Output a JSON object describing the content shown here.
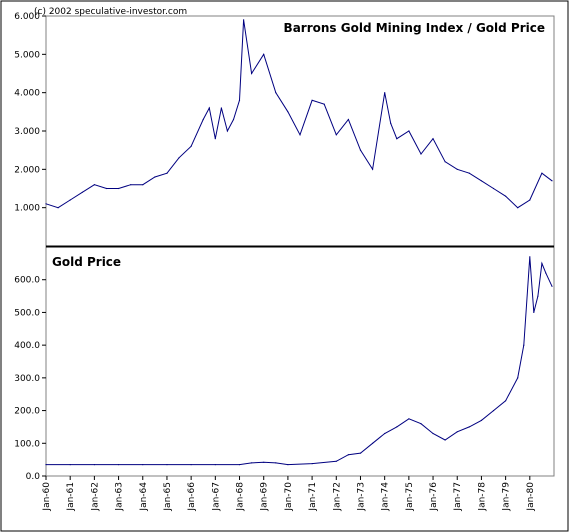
{
  "chart_data": [
    {
      "type": "line",
      "title": "Barrons Gold Mining Index / Gold Price",
      "subtitle": "(c) 2002 speculative-investor.com",
      "x_tick_labels": [
        "Jan-60",
        "Jan-61",
        "Jan-62",
        "Jan-63",
        "Jan-64",
        "Jan-65",
        "Jan-66",
        "Jan-67",
        "Jan-68",
        "Jan-69",
        "Jan-70",
        "Jan-71",
        "Jan-72",
        "Jan-73",
        "Jan-74",
        "Jan-75",
        "Jan-76",
        "Jan-77",
        "Jan-78",
        "Jan-79",
        "Jan-80"
      ],
      "y_tick_labels": [
        "1.000",
        "2.000",
        "3.000",
        "4.000",
        "5.000",
        "6.000"
      ],
      "ylim": [
        0,
        6
      ],
      "xlim": [
        "Jan-60",
        "Dec-80"
      ],
      "grid": false,
      "series": [
        {
          "color": "#000080",
          "x": [
            "Jan-60",
            "Jul-60",
            "Jan-61",
            "Jul-61",
            "Jan-62",
            "Jul-62",
            "Jan-63",
            "Jul-63",
            "Jan-64",
            "Jul-64",
            "Jan-65",
            "Jul-65",
            "Jan-66",
            "Jul-66",
            "Oct-66",
            "Jan-67",
            "Apr-67",
            "Jul-67",
            "Oct-67",
            "Jan-68",
            "Mar-68",
            "Jul-68",
            "Jan-69",
            "Jul-69",
            "Jan-70",
            "Jul-70",
            "Jan-71",
            "Jul-71",
            "Jan-72",
            "Jul-72",
            "Jan-73",
            "Jul-73",
            "Jan-74",
            "Apr-74",
            "Jul-74",
            "Jan-75",
            "Jul-75",
            "Jan-76",
            "Jul-76",
            "Jan-77",
            "Jul-77",
            "Jan-78",
            "Jul-78",
            "Jan-79",
            "Jul-79",
            "Jan-80",
            "Jul-80",
            "Dec-80"
          ],
          "values": [
            1.1,
            1.0,
            1.2,
            1.4,
            1.6,
            1.5,
            1.5,
            1.6,
            1.6,
            1.8,
            1.9,
            2.3,
            2.6,
            3.3,
            3.6,
            2.8,
            3.6,
            3.0,
            3.3,
            3.8,
            5.9,
            4.5,
            5.0,
            4.0,
            3.5,
            2.9,
            3.8,
            3.7,
            2.9,
            3.3,
            2.5,
            2.0,
            4.0,
            3.2,
            2.8,
            3.0,
            2.4,
            2.8,
            2.2,
            2.0,
            1.9,
            1.7,
            1.5,
            1.3,
            1.0,
            1.2,
            1.9,
            1.7
          ]
        }
      ]
    },
    {
      "type": "line",
      "title": "Gold Price",
      "x_tick_labels": [
        "Jan-60",
        "Jan-61",
        "Jan-62",
        "Jan-63",
        "Jan-64",
        "Jan-65",
        "Jan-66",
        "Jan-67",
        "Jan-68",
        "Jan-69",
        "Jan-70",
        "Jan-71",
        "Jan-72",
        "Jan-73",
        "Jan-74",
        "Jan-75",
        "Jan-76",
        "Jan-77",
        "Jan-78",
        "Jan-79",
        "Jan-80"
      ],
      "y_tick_labels": [
        "0.0",
        "100.0",
        "200.0",
        "300.0",
        "400.0",
        "500.0",
        "600.0"
      ],
      "ylim": [
        0,
        700
      ],
      "xlim": [
        "Jan-60",
        "Dec-80"
      ],
      "grid": false,
      "series": [
        {
          "color": "#000080",
          "x": [
            "Jan-60",
            "Jan-61",
            "Jan-62",
            "Jan-63",
            "Jan-64",
            "Jan-65",
            "Jan-66",
            "Jan-67",
            "Jan-68",
            "Jul-68",
            "Jan-69",
            "Jul-69",
            "Jan-70",
            "Jan-71",
            "Jan-72",
            "Jul-72",
            "Jan-73",
            "Jul-73",
            "Jan-74",
            "Jul-74",
            "Jan-75",
            "Jul-75",
            "Jan-76",
            "Jul-76",
            "Jan-77",
            "Jul-77",
            "Jan-78",
            "Jul-78",
            "Jan-79",
            "Jul-79",
            "Oct-79",
            "Jan-80",
            "Mar-80",
            "May-80",
            "Jul-80",
            "Sep-80",
            "Dec-80"
          ],
          "values": [
            35,
            35,
            35,
            35,
            35,
            35,
            35,
            35,
            35,
            40,
            42,
            40,
            35,
            38,
            45,
            65,
            70,
            100,
            130,
            150,
            175,
            160,
            130,
            110,
            135,
            150,
            170,
            200,
            230,
            300,
            400,
            670,
            500,
            550,
            650,
            620,
            580
          ]
        }
      ]
    }
  ]
}
